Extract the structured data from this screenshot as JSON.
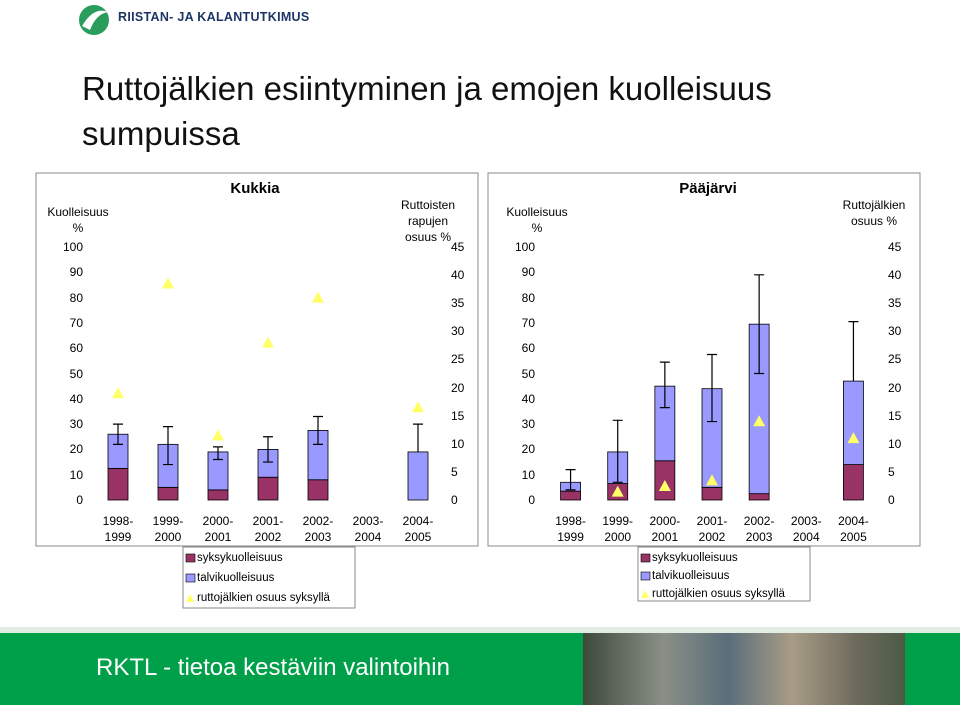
{
  "header": {
    "logo_text": "RIISTAN- JA KALANTUTKIMUS",
    "title": "Ruttojälkien esiintyminen ja emojen kuolleisuus sumpuissa"
  },
  "chart_data": [
    {
      "type": "bar",
      "stacked": true,
      "grid": false,
      "title": "Kukkia",
      "y_label": "Kuolleisuus\n%",
      "y2_label": "Ruttoisten\nrapujen\nosuus %",
      "categories": [
        "1998-\n1999",
        "1999-\n2000",
        "2000-\n2001",
        "2001-\n2002",
        "2002-\n2003",
        "2003-\n2004",
        "2004-\n2005"
      ],
      "series": [
        {
          "name": "syksykuolleisuus",
          "color": "#993366",
          "values": [
            12.5,
            5,
            4,
            9,
            8,
            null,
            0
          ]
        },
        {
          "name": "talvikuolleisuus",
          "color": "#9999ff",
          "values": [
            13.5,
            17,
            15,
            11,
            19.5,
            null,
            19
          ],
          "error_low": [
            22,
            14,
            16,
            15,
            22,
            null,
            null
          ],
          "error_high": [
            30,
            29,
            21,
            25,
            33,
            null,
            30
          ]
        },
        {
          "name": "ruttojälkien osuus syksyllä",
          "color": "#ffff66",
          "marker": "triangle",
          "axis": "y2",
          "values": [
            19,
            38.5,
            11.5,
            28,
            36,
            null,
            16.5
          ]
        }
      ],
      "ylim": [
        0,
        100
      ],
      "yticks": [
        0,
        10,
        20,
        30,
        40,
        50,
        60,
        70,
        80,
        90,
        100
      ],
      "y2lim": [
        0,
        45
      ],
      "y2ticks": [
        0,
        5,
        10,
        15,
        20,
        25,
        30,
        35,
        40,
        45
      ]
    },
    {
      "type": "bar",
      "stacked": true,
      "grid": false,
      "title": "Pääjärvi",
      "y_label": "Kuolleisuus\n%",
      "y2_label": "Ruttojälkien\nosuus %",
      "categories": [
        "1998-\n1999",
        "1999-\n2000",
        "2000-\n2001",
        "2001-\n2002",
        "2002-\n2003",
        "2003-\n2004",
        "2004-\n2005"
      ],
      "series": [
        {
          "name": "syksykuolleisuus",
          "color": "#993366",
          "values": [
            3.5,
            6.5,
            15.5,
            5,
            2.5,
            null,
            14
          ]
        },
        {
          "name": "talvikuolleisuus",
          "color": "#9999ff",
          "values": [
            3.5,
            12.5,
            29.5,
            39,
            67,
            null,
            33
          ],
          "error_low": [
            4,
            7,
            36.5,
            31,
            50,
            null,
            null
          ],
          "error_high": [
            12,
            31.5,
            54.5,
            57.5,
            89,
            null,
            70.5
          ]
        },
        {
          "name": "ruttojälkien osuus syksyllä",
          "color": "#ffff66",
          "marker": "triangle",
          "axis": "y2",
          "values": [
            null,
            1.5,
            2.5,
            3.5,
            14,
            null,
            11
          ]
        }
      ],
      "ylim": [
        0,
        100
      ],
      "yticks": [
        0,
        10,
        20,
        30,
        40,
        50,
        60,
        70,
        80,
        90,
        100
      ],
      "y2lim": [
        0,
        45
      ],
      "y2ticks": [
        0,
        5,
        10,
        15,
        20,
        25,
        30,
        35,
        40,
        45
      ]
    }
  ],
  "footer": {
    "text": "RKTL - tietoa kestäviin valintoihin"
  }
}
